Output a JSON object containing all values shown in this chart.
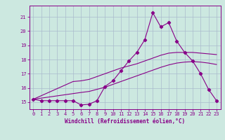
{
  "xlabel": "Windchill (Refroidissement éolien,°C)",
  "bg_color": "#cce8e0",
  "line_color": "#880088",
  "grid_color": "#aabbcc",
  "x_values": [
    0,
    1,
    2,
    3,
    4,
    5,
    6,
    7,
    8,
    9,
    10,
    11,
    12,
    13,
    14,
    15,
    16,
    17,
    18,
    19,
    20,
    21,
    22,
    23
  ],
  "curve1": [
    15.2,
    15.1,
    15.1,
    15.1,
    15.1,
    15.1,
    14.8,
    14.85,
    15.1,
    16.1,
    16.5,
    17.2,
    17.9,
    18.5,
    19.4,
    21.3,
    20.3,
    20.6,
    19.3,
    18.5,
    17.9,
    17.0,
    15.9,
    15.1
  ],
  "line2": [
    15.2,
    15.45,
    15.7,
    15.95,
    16.2,
    16.45,
    16.5,
    16.6,
    16.8,
    17.0,
    17.2,
    17.4,
    17.55,
    17.7,
    17.9,
    18.1,
    18.3,
    18.45,
    18.5,
    18.5,
    18.5,
    18.45,
    18.4,
    18.35
  ],
  "line3": [
    15.2,
    15.28,
    15.36,
    15.44,
    15.52,
    15.6,
    15.68,
    15.75,
    15.9,
    16.05,
    16.25,
    16.45,
    16.65,
    16.85,
    17.05,
    17.25,
    17.45,
    17.62,
    17.75,
    17.82,
    17.85,
    17.82,
    17.75,
    17.65
  ],
  "ylim": [
    14.5,
    21.8
  ],
  "xlim": [
    -0.5,
    23.5
  ],
  "yticks": [
    15,
    16,
    17,
    18,
    19,
    20,
    21
  ],
  "xticks": [
    0,
    1,
    2,
    3,
    4,
    5,
    6,
    7,
    8,
    9,
    10,
    11,
    12,
    13,
    14,
    15,
    16,
    17,
    18,
    19,
    20,
    21,
    22,
    23
  ]
}
